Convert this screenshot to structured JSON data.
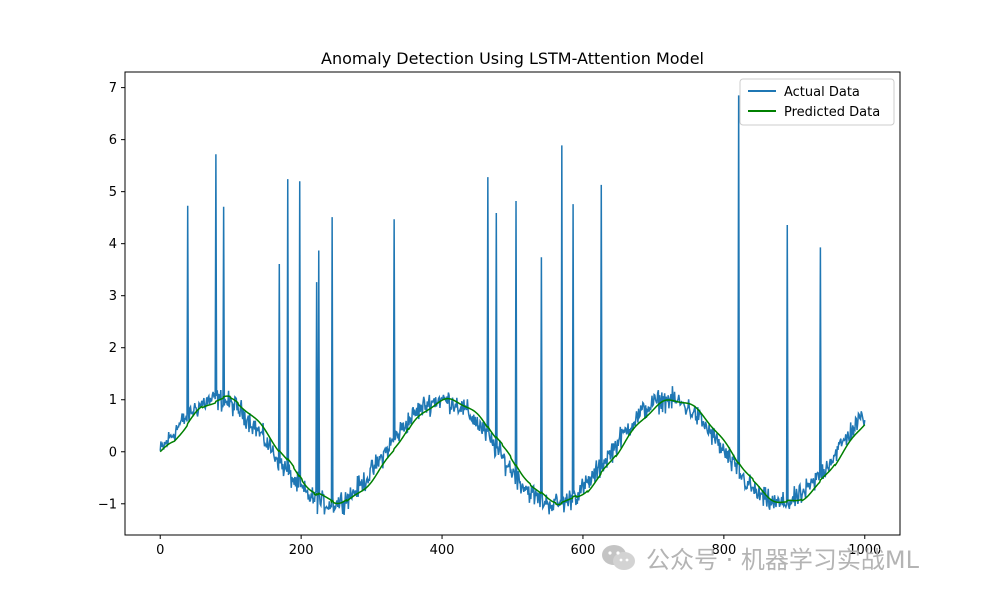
{
  "chart_data": {
    "type": "line",
    "title": "Anomaly Detection Using LSTM-Attention Model",
    "xlabel": "",
    "ylabel": "",
    "xlim": [
      -50,
      1050
    ],
    "ylim": [
      -1.6,
      7.3
    ],
    "xticks": [
      "0",
      "200",
      "400",
      "600",
      "800",
      "1000"
    ],
    "yticks": [
      "−1",
      "0",
      "1",
      "2",
      "3",
      "4",
      "5",
      "6",
      "7"
    ],
    "grid": false,
    "legend_position": "top-right",
    "series": [
      {
        "name": "Actual Data",
        "color": "#1f77b4",
        "base_curve": "sin(2*pi*x/320)",
        "noise_amplitude": 0.15,
        "x_range": [
          0,
          1000
        ],
        "anomalies": [
          {
            "x": 39,
            "y": 4.73
          },
          {
            "x": 79,
            "y": 5.72
          },
          {
            "x": 90,
            "y": 4.71
          },
          {
            "x": 169,
            "y": 3.61
          },
          {
            "x": 181,
            "y": 5.24
          },
          {
            "x": 198,
            "y": 5.2
          },
          {
            "x": 222,
            "y": 3.26
          },
          {
            "x": 225,
            "y": 3.87
          },
          {
            "x": 244,
            "y": 4.51
          },
          {
            "x": 332,
            "y": 4.47
          },
          {
            "x": 465,
            "y": 5.28
          },
          {
            "x": 477,
            "y": 4.59
          },
          {
            "x": 505,
            "y": 4.82
          },
          {
            "x": 541,
            "y": 3.74
          },
          {
            "x": 570,
            "y": 5.89
          },
          {
            "x": 586,
            "y": 4.76
          },
          {
            "x": 626,
            "y": 5.13
          },
          {
            "x": 821,
            "y": 6.85
          },
          {
            "x": 890,
            "y": 4.36
          },
          {
            "x": 937,
            "y": 3.93
          }
        ]
      },
      {
        "name": "Predicted Data",
        "color": "#008000",
        "base_curve": "smoothed actual data",
        "x_range": [
          0,
          1000
        ]
      }
    ]
  },
  "watermark": {
    "text": "公众号 · 机器学习实战ML",
    "icon": "wechat-icon"
  }
}
